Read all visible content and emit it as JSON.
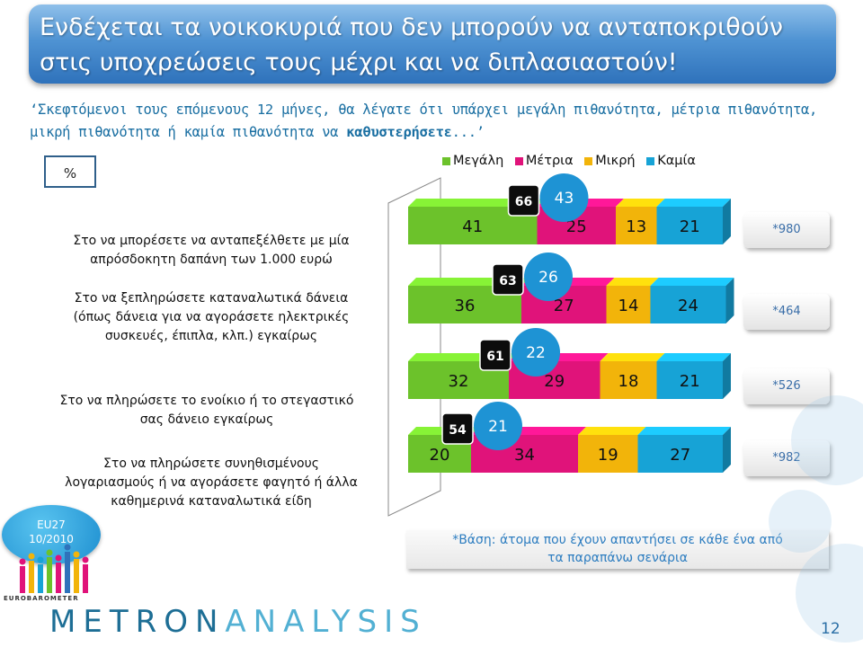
{
  "title": "Ενδέχεται τα νοικοκυριά που δεν μπορούν να ανταποκριθούν στις υποχρεώσεις τους μέχρι και να διπλασιαστούν!",
  "question": {
    "part1": "‘Σκεφτόμενοι τους επόμενους 12 μήνες, θα λέγατε ότι υπάρχει μεγάλη πιθανότητα, μέτρια πιθανότητα, μικρή πιθανότητα ή καμία πιθανότητα να ",
    "bold": "καθυστερήσετε",
    "part2": "...’"
  },
  "pct_label": "%",
  "colors": {
    "great": "#6cc22b",
    "medium": "#e0137a",
    "small": "#f2b40a",
    "none": "#17a3d6",
    "title_bg": "#3f86cc"
  },
  "chart_data": {
    "type": "bar",
    "orientation": "horizontal",
    "stacked": true,
    "categories": [
      "Στο να μπορέσετε να ανταπεξέλθετε με μία απρόσδοκητη δαπάνη των 1.000 ευρώ",
      "Στο να ξεπληρώσετε καταναλωτικά δάνεια (όπως δάνεια για να αγοράσετε ηλεκτρικές συσκευές, έπιπλα, κλπ.) εγκαίρως",
      "Στο να πληρώσετε το ενοίκιο ή το στεγαστικό σας δάνειο εγκαίρως",
      "Στο να πληρώσετε συνηθισμένους λογαριασμούς ή να αγοράσετε φαγητό ή άλλα καθημερινά καταναλωτικά είδη"
    ],
    "series": [
      {
        "name": "Μεγάλη",
        "values": [
          41,
          36,
          32,
          20
        ]
      },
      {
        "name": "Μέτρια",
        "values": [
          25,
          27,
          29,
          34
        ]
      },
      {
        "name": "Μικρή",
        "values": [
          13,
          14,
          18,
          19
        ]
      },
      {
        "name": "Καμία",
        "values": [
          21,
          24,
          21,
          27
        ]
      }
    ],
    "combined_great_medium": [
      66,
      63,
      61,
      54
    ],
    "eu27_comparison": [
      43,
      26,
      22,
      21
    ],
    "bases": [
      "*980",
      "*464",
      "*526",
      "*982"
    ],
    "legend_position": "top"
  },
  "row_labels": [
    [
      "Στο να μπορέσετε να ανταπεξέλθετε με μία",
      "απρόσδοκητη δαπάνη των 1.000 ευρώ"
    ],
    [
      "Στο να ξεπληρώσετε καταναλωτικά δάνεια",
      "(όπως δάνεια για να αγοράσετε ηλεκτρικές",
      "συσκευές, έπιπλα, κλπ.) εγκαίρως"
    ],
    [
      "Στο να πληρώσετε το ενοίκιο ή το στεγαστικό",
      "σας δάνειο εγκαίρως"
    ],
    [
      "Στο να πληρώσετε συνηθισμένους",
      "λογαριασμούς ή να αγοράσετε φαγητό ή άλλα",
      "καθημερινά καταναλωτικά είδη"
    ]
  ],
  "base_note": [
    "*Βάση: άτομα που έχουν απαντήσει σε κάθε ένα από",
    "τα παραπάνω σενάρια"
  ],
  "eu_badge": {
    "line1": "EU27",
    "line2": "10/2010"
  },
  "eurobarometer": "EUROBAROMETER",
  "brand": {
    "part1": "METRON",
    "part2": "ANALYSIS"
  },
  "page_number": "12"
}
